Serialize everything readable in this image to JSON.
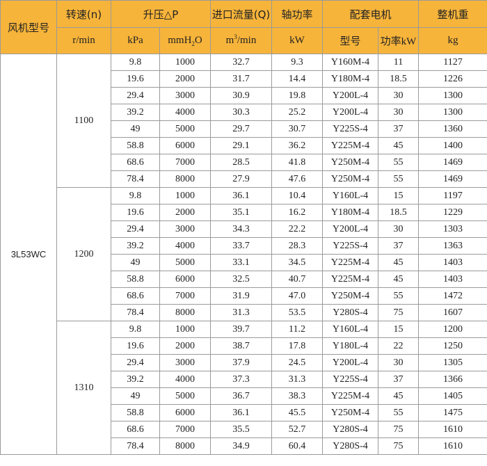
{
  "headers": {
    "model": "风机型号",
    "speed": "转速(n)",
    "pressure": "升压△P",
    "flow": "进口流量(Q)",
    "shaft_power": "轴功率",
    "motor": "配套电机",
    "weight": "整机重"
  },
  "units": {
    "speed": "r/min",
    "kpa": "kPa",
    "mmh2o_pre": "mmH",
    "mmh2o_sub": "2",
    "mmh2o_post": "O",
    "flow_pre": "m",
    "flow_sup": "3",
    "flow_post": "/min",
    "kw": "kW",
    "motor_model": "型号",
    "motor_power": "功率kW",
    "kg": "kg"
  },
  "model": "3L53WC",
  "groups": [
    {
      "speed": "1100",
      "rows": [
        [
          "9.8",
          "1000",
          "32.7",
          "9.3",
          "Y160M-4",
          "11",
          "1127"
        ],
        [
          "19.6",
          "2000",
          "31.7",
          "14.4",
          "Y180M-4",
          "18.5",
          "1226"
        ],
        [
          "29.4",
          "3000",
          "30.9",
          "19.8",
          "Y200L-4",
          "30",
          "1300"
        ],
        [
          "39.2",
          "4000",
          "30.3",
          "25.2",
          "Y200L-4",
          "30",
          "1300"
        ],
        [
          "49",
          "5000",
          "29.7",
          "30.7",
          "Y225S-4",
          "37",
          "1360"
        ],
        [
          "58.8",
          "6000",
          "29.1",
          "36.2",
          "Y225M-4",
          "45",
          "1400"
        ],
        [
          "68.6",
          "7000",
          "28.5",
          "41.8",
          "Y250M-4",
          "55",
          "1469"
        ],
        [
          "78.4",
          "8000",
          "27.9",
          "47.6",
          "Y250M-4",
          "55",
          "1469"
        ]
      ]
    },
    {
      "speed": "1200",
      "rows": [
        [
          "9.8",
          "1000",
          "36.1",
          "10.4",
          "Y160L-4",
          "15",
          "1197"
        ],
        [
          "19.6",
          "2000",
          "35.1",
          "16.2",
          "Y180M-4",
          "18.5",
          "1229"
        ],
        [
          "29.4",
          "3000",
          "34.3",
          "22.2",
          "Y200L-4",
          "30",
          "1303"
        ],
        [
          "39.2",
          "4000",
          "33.7",
          "28.3",
          "Y225S-4",
          "37",
          "1363"
        ],
        [
          "49",
          "5000",
          "33.1",
          "34.5",
          "Y225M-4",
          "45",
          "1403"
        ],
        [
          "58.8",
          "6000",
          "32.5",
          "40.7",
          "Y225M-4",
          "45",
          "1403"
        ],
        [
          "68.6",
          "7000",
          "31.9",
          "47.0",
          "Y250M-4",
          "55",
          "1472"
        ],
        [
          "78.4",
          "8000",
          "31.3",
          "53.5",
          "Y280S-4",
          "75",
          "1607"
        ]
      ]
    },
    {
      "speed": "1310",
      "rows": [
        [
          "9.8",
          "1000",
          "39.7",
          "11.2",
          "Y160L-4",
          "15",
          "1200"
        ],
        [
          "19.6",
          "2000",
          "38.7",
          "17.8",
          "Y180L-4",
          "22",
          "1250"
        ],
        [
          "29.4",
          "3000",
          "37.9",
          "24.5",
          "Y200L-4",
          "30",
          "1305"
        ],
        [
          "39.2",
          "4000",
          "37.3",
          "31.3",
          "Y225S-4",
          "37",
          "1366"
        ],
        [
          "49",
          "5000",
          "36.7",
          "38.3",
          "Y225M-4",
          "45",
          "1405"
        ],
        [
          "58.8",
          "6000",
          "36.1",
          "45.5",
          "Y250M-4",
          "55",
          "1475"
        ],
        [
          "68.6",
          "7000",
          "35.5",
          "52.7",
          "Y280S-4",
          "75",
          "1610"
        ],
        [
          "78.4",
          "8000",
          "34.9",
          "60.4",
          "Y280S-4",
          "75",
          "1610"
        ]
      ]
    }
  ]
}
